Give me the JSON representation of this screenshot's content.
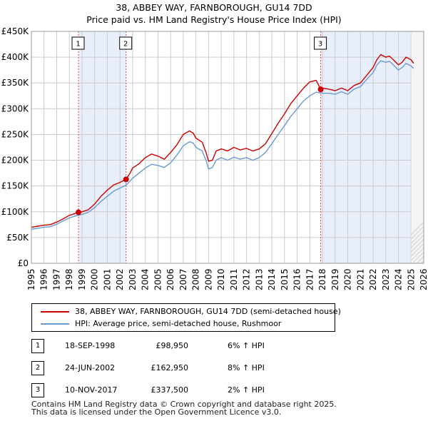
{
  "chart_data": {
    "type": "line",
    "title": [
      "38, ABBEY WAY, FARNBOROUGH, GU14 7DD",
      "Price paid vs. HM Land Registry's House Price Index (HPI)"
    ],
    "xlim": [
      1995,
      2026
    ],
    "ylim": [
      0,
      450000
    ],
    "x_ticks": [
      "1995",
      "1996",
      "1997",
      "1998",
      "1999",
      "2000",
      "2001",
      "2002",
      "2003",
      "2004",
      "2005",
      "2006",
      "2007",
      "2008",
      "2009",
      "2010",
      "2011",
      "2012",
      "2013",
      "2014",
      "2015",
      "2016",
      "2017",
      "2018",
      "2019",
      "2020",
      "2021",
      "2022",
      "2023",
      "2024",
      "2025",
      "2026"
    ],
    "y_ticks": [
      {
        "value": 0,
        "label": "£0"
      },
      {
        "value": 50000,
        "label": "£50K"
      },
      {
        "value": 100000,
        "label": "£100K"
      },
      {
        "value": 150000,
        "label": "£150K"
      },
      {
        "value": 200000,
        "label": "£200K"
      },
      {
        "value": 250000,
        "label": "£250K"
      },
      {
        "value": 300000,
        "label": "£300K"
      },
      {
        "value": 350000,
        "label": "£350K"
      },
      {
        "value": 400000,
        "label": "£400K"
      },
      {
        "value": 450000,
        "label": "£450K"
      }
    ],
    "grid": true,
    "forecast_from": 2025.0,
    "series": [
      {
        "name": "38, ABBEY WAY, FARNBOROUGH, GU14 7DD (semi-detached house)",
        "color": "#cc0000",
        "x": [
          1995.0,
          1995.5,
          1996.0,
          1996.5,
          1997.0,
          1997.5,
          1998.0,
          1998.5,
          1998.72,
          1999.0,
          1999.5,
          2000.0,
          2000.5,
          2001.0,
          2001.5,
          2002.0,
          2002.48,
          2002.8,
          2003.0,
          2003.5,
          2004.0,
          2004.5,
          2005.0,
          2005.5,
          2006.0,
          2006.5,
          2007.0,
          2007.5,
          2007.8,
          2008.0,
          2008.5,
          2008.8,
          2009.0,
          2009.3,
          2009.6,
          2010.0,
          2010.5,
          2011.0,
          2011.5,
          2012.0,
          2012.5,
          2013.0,
          2013.5,
          2014.0,
          2014.5,
          2015.0,
          2015.5,
          2016.0,
          2016.5,
          2017.0,
          2017.5,
          2017.86,
          2018.0,
          2018.5,
          2019.0,
          2019.5,
          2020.0,
          2020.5,
          2021.0,
          2021.5,
          2022.0,
          2022.3,
          2022.6,
          2023.0,
          2023.3,
          2023.6,
          2024.0,
          2024.3,
          2024.6,
          2025.0,
          2025.2
        ],
        "values": [
          70000,
          72000,
          74000,
          75000,
          80000,
          86000,
          93000,
          97000,
          98950,
          100000,
          104000,
          115000,
          130000,
          142000,
          152000,
          157000,
          162950,
          175000,
          185000,
          193000,
          205000,
          212000,
          208000,
          202000,
          215000,
          230000,
          250000,
          257000,
          252000,
          243000,
          235000,
          215000,
          198000,
          200000,
          218000,
          222000,
          218000,
          225000,
          220000,
          223000,
          218000,
          222000,
          232000,
          252000,
          272000,
          290000,
          310000,
          325000,
          340000,
          352000,
          355000,
          337500,
          340000,
          338000,
          335000,
          340000,
          335000,
          345000,
          350000,
          365000,
          380000,
          395000,
          405000,
          400000,
          402000,
          395000,
          385000,
          390000,
          400000,
          395000,
          388000
        ]
      },
      {
        "name": "HPI: Average price, semi-detached house, Rushmoor",
        "color": "#6a9ad6",
        "x": [
          1995.0,
          1995.5,
          1996.0,
          1996.5,
          1997.0,
          1997.5,
          1998.0,
          1998.5,
          1999.0,
          1999.5,
          2000.0,
          2000.5,
          2001.0,
          2001.5,
          2002.0,
          2002.5,
          2003.0,
          2003.5,
          2004.0,
          2004.5,
          2005.0,
          2005.5,
          2006.0,
          2006.5,
          2007.0,
          2007.5,
          2007.8,
          2008.0,
          2008.5,
          2008.8,
          2009.0,
          2009.3,
          2009.6,
          2010.0,
          2010.5,
          2011.0,
          2011.5,
          2012.0,
          2012.5,
          2013.0,
          2013.5,
          2014.0,
          2014.5,
          2015.0,
          2015.5,
          2016.0,
          2016.5,
          2017.0,
          2017.5,
          2018.0,
          2018.5,
          2019.0,
          2019.5,
          2020.0,
          2020.5,
          2021.0,
          2021.5,
          2022.0,
          2022.3,
          2022.6,
          2023.0,
          2023.3,
          2023.6,
          2024.0,
          2024.3,
          2024.6,
          2025.0,
          2025.2
        ],
        "values": [
          66000,
          68000,
          70000,
          71000,
          76000,
          82000,
          88000,
          92000,
          95000,
          99000,
          108000,
          120000,
          130000,
          140000,
          146000,
          152000,
          165000,
          175000,
          185000,
          192000,
          190000,
          186000,
          195000,
          210000,
          228000,
          236000,
          233000,
          225000,
          218000,
          200000,
          183000,
          186000,
          200000,
          205000,
          200000,
          206000,
          202000,
          205000,
          200000,
          205000,
          215000,
          232000,
          250000,
          267000,
          285000,
          300000,
          315000,
          325000,
          332000,
          330000,
          330000,
          328000,
          333000,
          328000,
          338000,
          343000,
          357000,
          370000,
          385000,
          393000,
          390000,
          392000,
          385000,
          375000,
          380000,
          388000,
          383000,
          378000
        ]
      }
    ],
    "annotations": [
      {
        "label": "1",
        "x": 1998.72,
        "value": 98950
      },
      {
        "label": "2",
        "x": 2002.48,
        "value": 162950
      },
      {
        "label": "3",
        "x": 2017.86,
        "value": 337500
      }
    ]
  },
  "legend": {
    "property_label": "38, ABBEY WAY, FARNBOROUGH, GU14 7DD (semi-detached house)",
    "hpi_label": "HPI: Average price, semi-detached house, Rushmoor"
  },
  "transactions": [
    {
      "num": "1",
      "date": "18-SEP-1998",
      "price": "£98,950",
      "hpi": "6% ↑ HPI"
    },
    {
      "num": "2",
      "date": "24-JUN-2002",
      "price": "£162,950",
      "hpi": "8% ↑ HPI"
    },
    {
      "num": "3",
      "date": "10-NOV-2017",
      "price": "£337,500",
      "hpi": "2% ↑ HPI"
    }
  ],
  "footer": {
    "line1": "Contains HM Land Registry data © Crown copyright and database right 2025.",
    "line2": "This data is licensed under the Open Government Licence v3.0."
  },
  "colors": {
    "property": "#cc0000",
    "hpi": "#6a9ad6",
    "shade": "#e8eefa",
    "grid": "#cccccc",
    "vline": "#dd4444"
  }
}
